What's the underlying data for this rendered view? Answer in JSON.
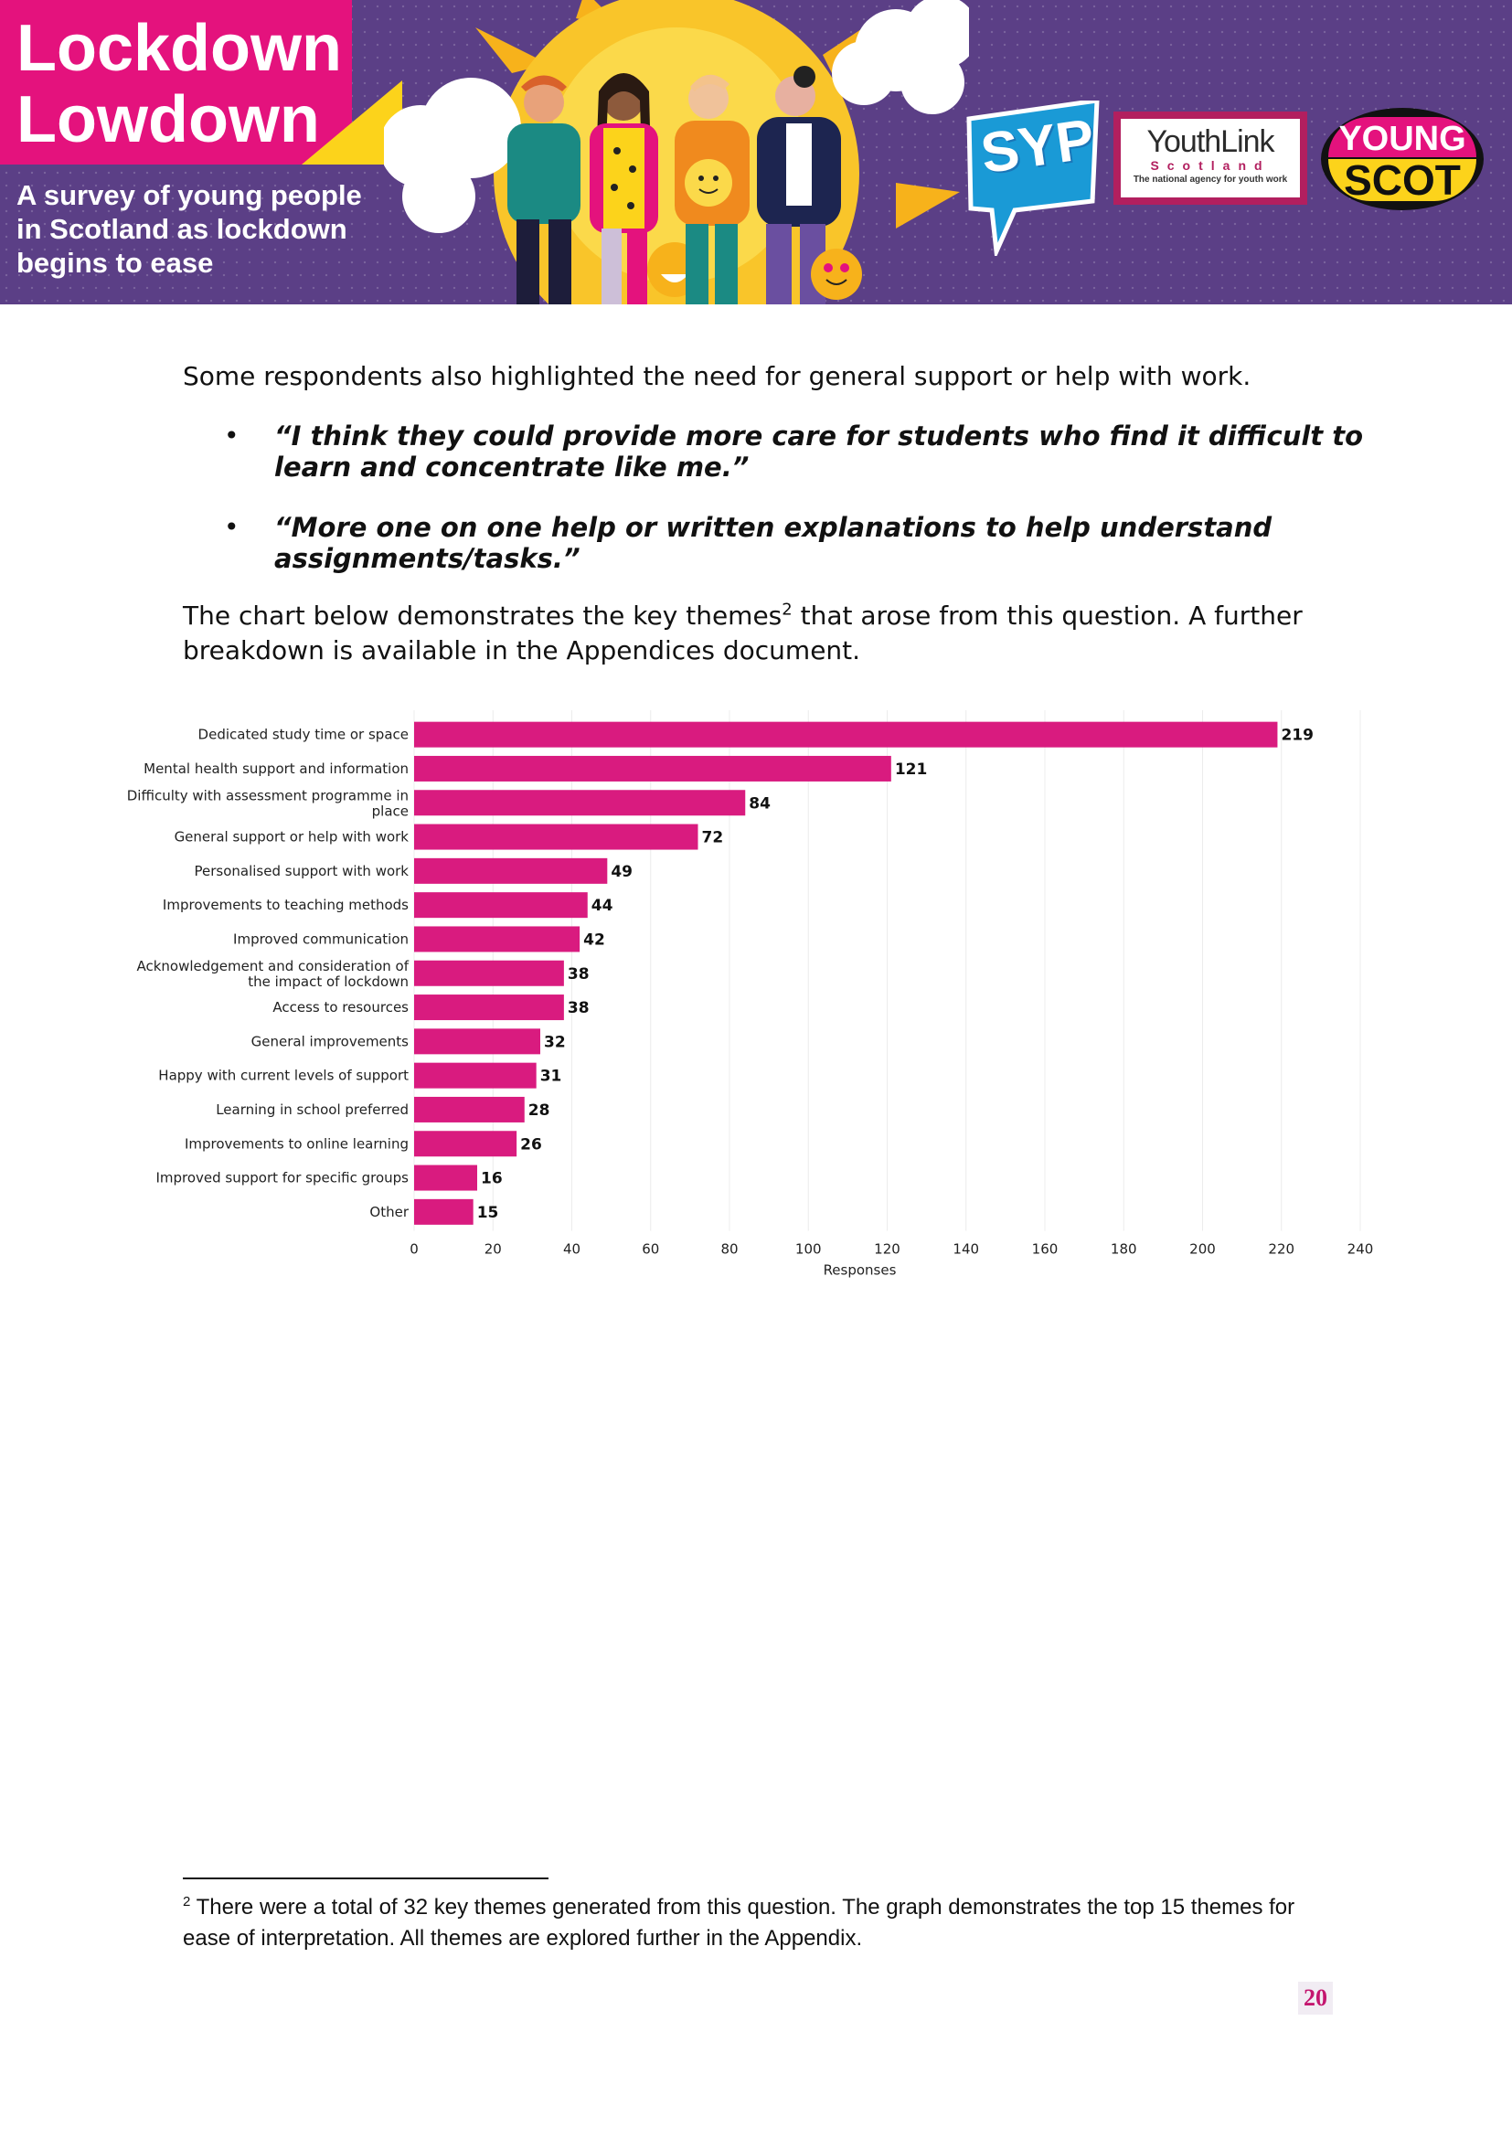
{
  "banner": {
    "title": "Lockdown\nLowdown",
    "subtitle": "A survey of young people\nin Scotland as lockdown\nbegins to ease",
    "logos": {
      "syp": "SYP",
      "youthlink_main": "YouthLink",
      "youthlink_sub": "Scotland",
      "youthlink_tagline": "The national agency for youth work",
      "youngscot_top": "YOUNG",
      "youngscot_bottom": "SCOT"
    },
    "colors": {
      "purple": "#5b3f86",
      "pink": "#e4127d",
      "yellow": "#fcd31b"
    }
  },
  "body": {
    "para1": "Some respondents also highlighted the need for general support or help with work.",
    "quotes": [
      "“I think they could provide more care for students who find it difficult to learn and concentrate like me.”",
      "“More one on one help or written explanations to help understand assignments/tasks.”"
    ],
    "para2_before": "The chart below demonstrates the key themes",
    "para2_sup": "2",
    "para2_after": " that arose from this question. A further breakdown is available in the Appendices document."
  },
  "chart_data": {
    "type": "bar",
    "orientation": "horizontal",
    "categories": [
      "Dedicated study time or space",
      "Mental health support and information",
      "Difficulty with assessment programme in place",
      "General support or help with work",
      "Personalised support with work",
      "Improvements to teaching methods",
      "Improved communication",
      "Acknowledgement and consideration of the impact of lockdown",
      "Access to resources",
      "General improvements",
      "Happy with current levels of support",
      "Learning in school preferred",
      "Improvements to online learning",
      "Improved support for specific groups",
      "Other"
    ],
    "category_lines": [
      [
        "Dedicated study time or space"
      ],
      [
        "Mental health support and information"
      ],
      [
        "Difficulty with assessment programme in",
        "place"
      ],
      [
        "General support or help with work"
      ],
      [
        "Personalised support with work"
      ],
      [
        "Improvements to teaching methods"
      ],
      [
        "Improved communication"
      ],
      [
        "Acknowledgement and consideration of",
        "the impact of lockdown"
      ],
      [
        "Access to resources"
      ],
      [
        "General improvements"
      ],
      [
        "Happy with current levels of support"
      ],
      [
        "Learning in school preferred"
      ],
      [
        "Improvements to online learning"
      ],
      [
        "Improved support for specific groups"
      ],
      [
        "Other"
      ]
    ],
    "values": [
      219,
      121,
      84,
      72,
      49,
      44,
      42,
      38,
      38,
      32,
      31,
      28,
      26,
      16,
      15
    ],
    "xlabel": "Responses",
    "xlim": [
      0,
      240
    ],
    "xticks": [
      0,
      20,
      40,
      60,
      80,
      100,
      120,
      140,
      160,
      180,
      200,
      220,
      240
    ],
    "grid": true,
    "bar_color": "#d91b7f"
  },
  "footnote": {
    "number": "2",
    "text": " There were a total of 32 key themes generated from this question. The graph demonstrates the top 15 themes for ease of interpretation. All themes are explored further in the Appendix."
  },
  "page_number": "20"
}
